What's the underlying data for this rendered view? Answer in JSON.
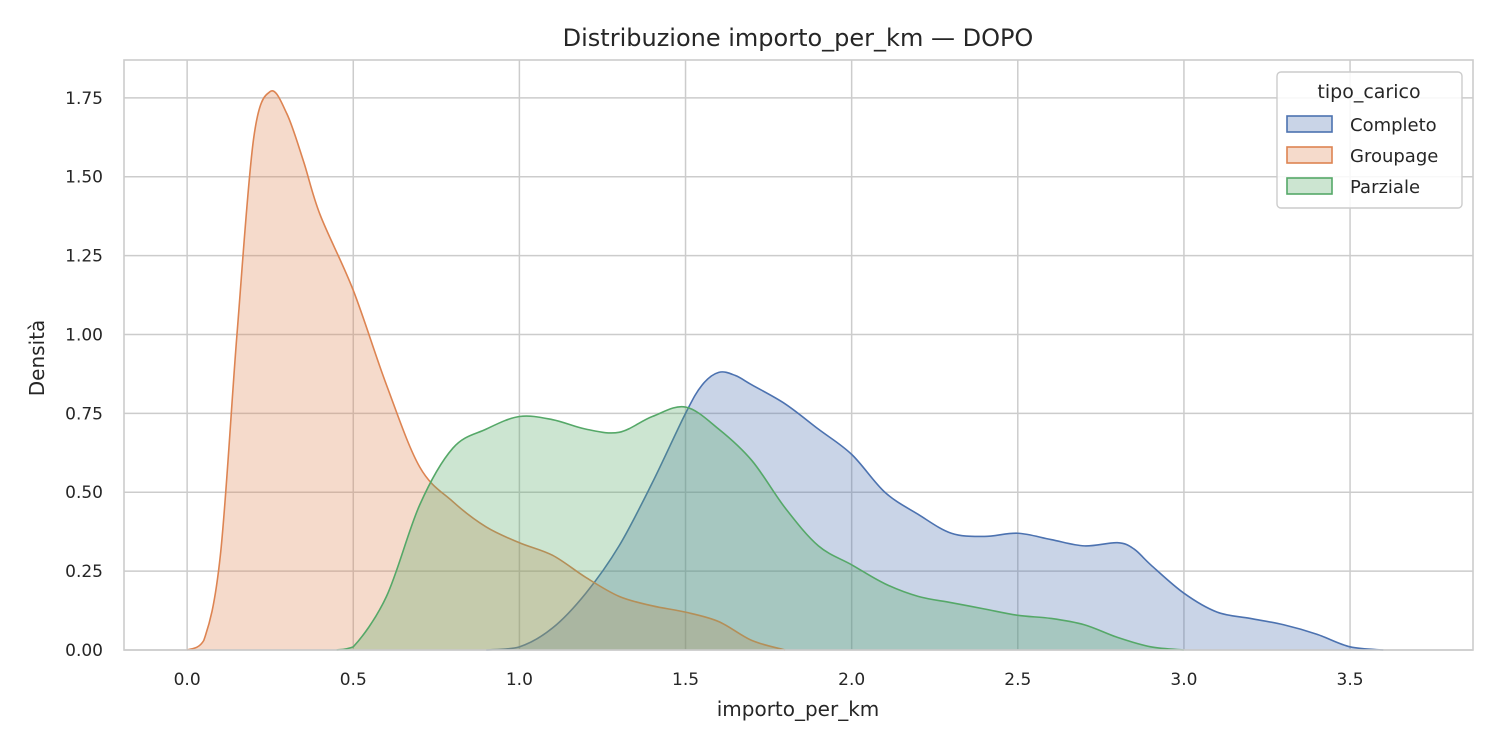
{
  "chart_data": {
    "type": "area",
    "title": "Distribuzione importo_per_km — DOPO",
    "xlabel": "importo_per_km",
    "ylabel": "Densità",
    "xlim": [
      -0.19,
      3.87
    ],
    "ylim": [
      0,
      1.87
    ],
    "xticks": [
      0.0,
      0.5,
      1.0,
      1.5,
      2.0,
      2.5,
      3.0,
      3.5
    ],
    "xtick_labels": [
      "0.0",
      "0.5",
      "1.0",
      "1.5",
      "2.0",
      "2.5",
      "3.0",
      "3.5"
    ],
    "yticks": [
      0,
      0.25,
      0.5,
      0.75,
      1.0,
      1.25,
      1.5,
      1.75
    ],
    "ytick_labels": [
      "0.00",
      "0.25",
      "0.50",
      "0.75",
      "1.00",
      "1.25",
      "1.50",
      "1.75"
    ],
    "grid": true,
    "legend": {
      "title": "tipo_carico",
      "position": "top-right"
    },
    "series": [
      {
        "name": "Completo",
        "color": "#4c72b0",
        "points": [
          [
            0.9,
            0
          ],
          [
            1.0,
            0.01
          ],
          [
            1.1,
            0.07
          ],
          [
            1.2,
            0.18
          ],
          [
            1.3,
            0.33
          ],
          [
            1.4,
            0.53
          ],
          [
            1.5,
            0.75
          ],
          [
            1.55,
            0.84
          ],
          [
            1.6,
            0.88
          ],
          [
            1.65,
            0.87
          ],
          [
            1.7,
            0.84
          ],
          [
            1.8,
            0.78
          ],
          [
            1.9,
            0.7
          ],
          [
            2.0,
            0.62
          ],
          [
            2.1,
            0.5
          ],
          [
            2.2,
            0.43
          ],
          [
            2.3,
            0.37
          ],
          [
            2.4,
            0.36
          ],
          [
            2.5,
            0.37
          ],
          [
            2.6,
            0.35
          ],
          [
            2.7,
            0.33
          ],
          [
            2.8,
            0.34
          ],
          [
            2.85,
            0.32
          ],
          [
            2.9,
            0.27
          ],
          [
            3.0,
            0.18
          ],
          [
            3.1,
            0.12
          ],
          [
            3.2,
            0.1
          ],
          [
            3.3,
            0.08
          ],
          [
            3.4,
            0.05
          ],
          [
            3.5,
            0.01
          ],
          [
            3.6,
            0
          ]
        ]
      },
      {
        "name": "Groupage",
        "color": "#dd8452",
        "points": [
          [
            0.0,
            0
          ],
          [
            0.05,
            0.03
          ],
          [
            0.1,
            0.3
          ],
          [
            0.15,
            1.0
          ],
          [
            0.2,
            1.62
          ],
          [
            0.25,
            1.77
          ],
          [
            0.3,
            1.7
          ],
          [
            0.35,
            1.55
          ],
          [
            0.4,
            1.38
          ],
          [
            0.5,
            1.14
          ],
          [
            0.6,
            0.84
          ],
          [
            0.7,
            0.58
          ],
          [
            0.8,
            0.47
          ],
          [
            0.9,
            0.39
          ],
          [
            1.0,
            0.34
          ],
          [
            1.1,
            0.3
          ],
          [
            1.2,
            0.23
          ],
          [
            1.3,
            0.17
          ],
          [
            1.4,
            0.14
          ],
          [
            1.5,
            0.12
          ],
          [
            1.6,
            0.09
          ],
          [
            1.7,
            0.03
          ],
          [
            1.8,
            0
          ]
        ]
      },
      {
        "name": "Parziale",
        "color": "#55a868",
        "points": [
          [
            0.45,
            0
          ],
          [
            0.5,
            0.01
          ],
          [
            0.6,
            0.17
          ],
          [
            0.7,
            0.46
          ],
          [
            0.8,
            0.64
          ],
          [
            0.9,
            0.7
          ],
          [
            1.0,
            0.74
          ],
          [
            1.1,
            0.73
          ],
          [
            1.2,
            0.7
          ],
          [
            1.3,
            0.69
          ],
          [
            1.4,
            0.74
          ],
          [
            1.5,
            0.77
          ],
          [
            1.6,
            0.7
          ],
          [
            1.7,
            0.6
          ],
          [
            1.8,
            0.45
          ],
          [
            1.9,
            0.33
          ],
          [
            2.0,
            0.27
          ],
          [
            2.1,
            0.21
          ],
          [
            2.2,
            0.17
          ],
          [
            2.3,
            0.15
          ],
          [
            2.4,
            0.13
          ],
          [
            2.5,
            0.11
          ],
          [
            2.6,
            0.1
          ],
          [
            2.7,
            0.08
          ],
          [
            2.8,
            0.04
          ],
          [
            2.9,
            0.01
          ],
          [
            3.0,
            0
          ]
        ]
      }
    ]
  }
}
